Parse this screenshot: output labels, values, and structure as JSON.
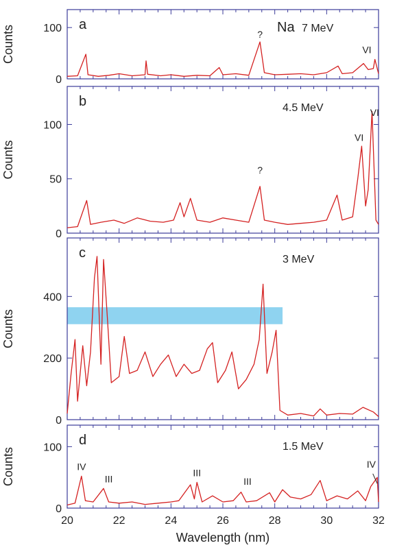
{
  "figure": {
    "element": "Na",
    "xlabel": "Wavelength (nm)",
    "xticks": [
      "20",
      "22",
      "24",
      "26",
      "28",
      "30",
      "32"
    ],
    "colors": {
      "axis": "#3b3b9a",
      "trace": "#d42020",
      "band": "#8fd3f0",
      "text": "#222222"
    }
  },
  "chart_data": [
    {
      "type": "line",
      "panel": "a",
      "energy": "7 MeV",
      "ylabel": "Counts",
      "xlim": [
        20,
        32
      ],
      "ylim": [
        0,
        135
      ],
      "yticks": [
        "0",
        "100"
      ],
      "x": [
        20.0,
        20.4,
        20.72,
        20.8,
        21.2,
        21.6,
        22.0,
        22.5,
        23.0,
        23.04,
        23.1,
        23.6,
        24.0,
        24.5,
        25.0,
        25.5,
        25.86,
        26.0,
        26.5,
        27.0,
        27.43,
        27.6,
        28.0,
        28.5,
        29.0,
        29.5,
        30.0,
        30.44,
        30.6,
        31.0,
        31.42,
        31.6,
        31.8,
        31.86,
        32.0
      ],
      "y": [
        5,
        6,
        48,
        8,
        5,
        7,
        10,
        6,
        8,
        35,
        9,
        6,
        8,
        5,
        7,
        6,
        22,
        8,
        10,
        7,
        72,
        12,
        8,
        9,
        10,
        8,
        12,
        25,
        10,
        12,
        30,
        18,
        20,
        38,
        10
      ],
      "annotations": [
        {
          "text": "?",
          "x": 27.43,
          "y": 80
        },
        {
          "text": "VI",
          "x": 31.55,
          "y": 50
        }
      ]
    },
    {
      "type": "line",
      "panel": "b",
      "energy": "4.5 MeV",
      "ylabel": "Counts",
      "xlim": [
        20,
        32
      ],
      "ylim": [
        0,
        135
      ],
      "yticks": [
        "0",
        "50",
        "100"
      ],
      "x": [
        20.0,
        20.4,
        20.75,
        20.9,
        21.3,
        21.8,
        22.2,
        22.7,
        23.2,
        23.7,
        24.1,
        24.35,
        24.5,
        24.75,
        25.0,
        25.5,
        26.0,
        26.5,
        27.0,
        27.43,
        27.6,
        28.0,
        28.5,
        29.0,
        29.5,
        30.0,
        30.4,
        30.6,
        31.0,
        31.2,
        31.35,
        31.5,
        31.6,
        31.75,
        31.9,
        32.0
      ],
      "y": [
        5,
        6,
        30,
        8,
        10,
        12,
        9,
        14,
        11,
        10,
        12,
        28,
        15,
        32,
        12,
        10,
        14,
        12,
        10,
        43,
        12,
        10,
        8,
        9,
        10,
        12,
        35,
        12,
        15,
        50,
        80,
        25,
        40,
        112,
        12,
        8
      ],
      "annotations": [
        {
          "text": "?",
          "x": 27.43,
          "y": 55
        },
        {
          "text": "VI",
          "x": 31.25,
          "y": 85
        },
        {
          "text": "VI",
          "x": 31.85,
          "y": 108
        }
      ]
    },
    {
      "type": "line",
      "panel": "c",
      "energy": "3 MeV",
      "ylabel": "Counts",
      "xlim": [
        20,
        32
      ],
      "ylim": [
        0,
        590
      ],
      "yticks": [
        "0",
        "200",
        "400"
      ],
      "band": {
        "x": [
          20,
          28.3
        ],
        "y": [
          310,
          365
        ]
      },
      "x": [
        20.0,
        20.15,
        20.3,
        20.4,
        20.6,
        20.75,
        20.9,
        21.05,
        21.15,
        21.3,
        21.4,
        21.55,
        21.7,
        22.0,
        22.2,
        22.4,
        22.7,
        23.0,
        23.3,
        23.6,
        23.9,
        24.2,
        24.5,
        24.8,
        25.1,
        25.4,
        25.6,
        25.8,
        26.1,
        26.35,
        26.6,
        26.9,
        27.2,
        27.4,
        27.55,
        27.7,
        27.9,
        28.05,
        28.2,
        28.5,
        29.0,
        29.5,
        29.75,
        30.0,
        30.5,
        31.0,
        31.4,
        31.8,
        32.0
      ],
      "y": [
        20,
        150,
        260,
        60,
        240,
        110,
        220,
        460,
        530,
        180,
        520,
        330,
        120,
        140,
        270,
        150,
        160,
        220,
        140,
        180,
        210,
        140,
        180,
        150,
        160,
        230,
        250,
        120,
        160,
        220,
        100,
        130,
        180,
        260,
        440,
        150,
        220,
        290,
        30,
        15,
        20,
        12,
        35,
        15,
        20,
        18,
        40,
        25,
        10
      ]
    },
    {
      "type": "line",
      "panel": "d",
      "energy": "1.5 MeV",
      "ylabel": "Counts",
      "xlim": [
        20,
        32
      ],
      "ylim": [
        0,
        135
      ],
      "yticks": [
        "0",
        "100"
      ],
      "x": [
        20.0,
        20.3,
        20.55,
        20.7,
        21.0,
        21.4,
        21.6,
        22.0,
        22.5,
        23.0,
        23.5,
        24.0,
        24.3,
        24.75,
        24.9,
        25.0,
        25.2,
        25.6,
        26.0,
        26.4,
        26.7,
        26.9,
        27.3,
        27.8,
        28.0,
        28.3,
        28.6,
        29.0,
        29.4,
        29.75,
        30.0,
        30.4,
        30.8,
        31.2,
        31.5,
        31.7,
        31.95,
        32.0
      ],
      "y": [
        5,
        8,
        52,
        12,
        10,
        32,
        10,
        8,
        10,
        6,
        8,
        10,
        12,
        38,
        15,
        42,
        10,
        20,
        10,
        12,
        26,
        10,
        12,
        25,
        10,
        30,
        18,
        15,
        22,
        45,
        12,
        20,
        15,
        28,
        12,
        35,
        50,
        10
      ],
      "annotations": [
        {
          "text": "IV",
          "x": 20.55,
          "y": 62
        },
        {
          "text": "III",
          "x": 21.6,
          "y": 42
        },
        {
          "text": "III",
          "x": 25.0,
          "y": 52
        },
        {
          "text": "III",
          "x": 26.95,
          "y": 38
        },
        {
          "text": "IV",
          "x": 31.72,
          "y": 66
        }
      ]
    }
  ]
}
